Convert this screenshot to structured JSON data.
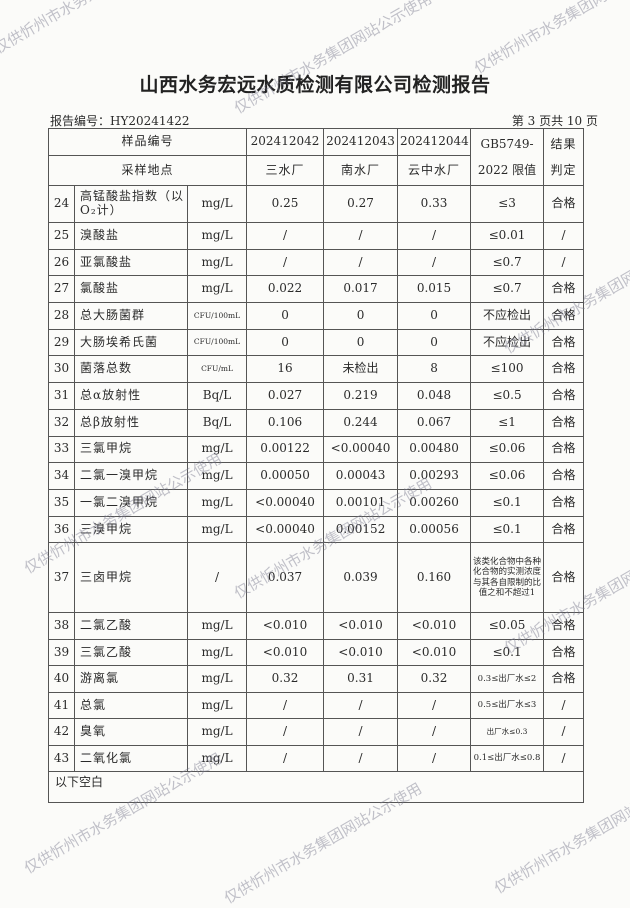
{
  "title": "山西水务宏远水质检测有限公司检测报告",
  "report_no": "报告编号：HY20241422",
  "page_no": "第 3 页共 10 页",
  "watermark": "仅供忻州市水务集团网站公示使用",
  "header": {
    "sample_no_label": "样品编号",
    "location_label": "采样地点",
    "samples": [
      "202412042",
      "202412043",
      "202412044"
    ],
    "locations": [
      "三水厂",
      "南水厂",
      "云中水厂"
    ],
    "limit_label_1": "GB5749-",
    "limit_label_2": "2022 限值",
    "result_label_1": "结果",
    "result_label_2": "判定"
  },
  "rows": [
    {
      "no": "24",
      "name": "高锰酸盐指数（以O₂计）",
      "unit": "mg/L",
      "v": [
        "0.25",
        "0.27",
        "0.33"
      ],
      "limit": "≤3",
      "result": "合格"
    },
    {
      "no": "25",
      "name": "溴酸盐",
      "unit": "mg/L",
      "v": [
        "/",
        "/",
        "/"
      ],
      "limit": "≤0.01",
      "result": "/"
    },
    {
      "no": "26",
      "name": "亚氯酸盐",
      "unit": "mg/L",
      "v": [
        "/",
        "/",
        "/"
      ],
      "limit": "≤0.7",
      "result": "/"
    },
    {
      "no": "27",
      "name": "氯酸盐",
      "unit": "mg/L",
      "v": [
        "0.022",
        "0.017",
        "0.015"
      ],
      "limit": "≤0.7",
      "result": "合格"
    },
    {
      "no": "28",
      "name": "总大肠菌群",
      "unit": "CFU/100mL",
      "v": [
        "0",
        "0",
        "0"
      ],
      "limit": "不应检出",
      "result": "合格"
    },
    {
      "no": "29",
      "name": "大肠埃希氏菌",
      "unit": "CFU/100mL",
      "v": [
        "0",
        "0",
        "0"
      ],
      "limit": "不应检出",
      "result": "合格"
    },
    {
      "no": "30",
      "name": "菌落总数",
      "unit": "CFU/mL",
      "v": [
        "16",
        "未检出",
        "8"
      ],
      "limit": "≤100",
      "result": "合格"
    },
    {
      "no": "31",
      "name": "总α放射性",
      "unit": "Bq/L",
      "v": [
        "0.027",
        "0.219",
        "0.048"
      ],
      "limit": "≤0.5",
      "result": "合格"
    },
    {
      "no": "32",
      "name": "总β放射性",
      "unit": "Bq/L",
      "v": [
        "0.106",
        "0.244",
        "0.067"
      ],
      "limit": "≤1",
      "result": "合格"
    },
    {
      "no": "33",
      "name": "三氯甲烷",
      "unit": "mg/L",
      "v": [
        "0.00122",
        "<0.00040",
        "0.00480"
      ],
      "limit": "≤0.06",
      "result": "合格"
    },
    {
      "no": "34",
      "name": "二氯一溴甲烷",
      "unit": "mg/L",
      "v": [
        "0.00050",
        "0.00043",
        "0.00293"
      ],
      "limit": "≤0.06",
      "result": "合格"
    },
    {
      "no": "35",
      "name": "一氯二溴甲烷",
      "unit": "mg/L",
      "v": [
        "<0.00040",
        "0.00101",
        "0.00260"
      ],
      "limit": "≤0.1",
      "result": "合格"
    },
    {
      "no": "36",
      "name": "三溴甲烷",
      "unit": "mg/L",
      "v": [
        "<0.00040",
        "0.00152",
        "0.00056"
      ],
      "limit": "≤0.1",
      "result": "合格"
    },
    {
      "no": "37",
      "name": "三卤甲烷",
      "unit": "/",
      "v": [
        "0.037",
        "0.039",
        "0.160"
      ],
      "limit": "该类化合物中各种化合物的实测浓度与其各自限制的比值之和不超过1",
      "result": "合格"
    },
    {
      "no": "38",
      "name": "二氯乙酸",
      "unit": "mg/L",
      "v": [
        "<0.010",
        "<0.010",
        "<0.010"
      ],
      "limit": "≤0.05",
      "result": "合格"
    },
    {
      "no": "39",
      "name": "三氯乙酸",
      "unit": "mg/L",
      "v": [
        "<0.010",
        "<0.010",
        "<0.010"
      ],
      "limit": "≤0.1",
      "result": "合格"
    },
    {
      "no": "40",
      "name": "游离氯",
      "unit": "mg/L",
      "v": [
        "0.32",
        "0.31",
        "0.32"
      ],
      "limit": "0.3≤出厂水≤2",
      "result": "合格"
    },
    {
      "no": "41",
      "name": "总氯",
      "unit": "mg/L",
      "v": [
        "/",
        "/",
        "/"
      ],
      "limit": "0.5≤出厂水≤3",
      "result": "/"
    },
    {
      "no": "42",
      "name": "臭氧",
      "unit": "mg/L",
      "v": [
        "/",
        "/",
        "/"
      ],
      "limit": "出厂水≤0.3",
      "result": "/"
    },
    {
      "no": "43",
      "name": "二氧化氯",
      "unit": "mg/L",
      "v": [
        "/",
        "/",
        "/"
      ],
      "limit": "0.1≤出厂水≤0.8",
      "result": "/"
    }
  ],
  "footer_note": "以下空白"
}
